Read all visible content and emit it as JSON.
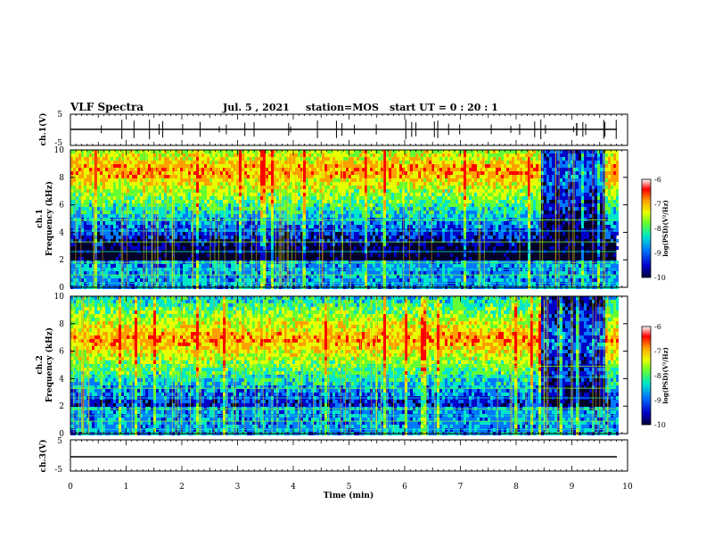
{
  "header": {
    "title": "VLF Spectra",
    "date": "Jul. 5 , 2021",
    "station": "station=MOS",
    "start": "start UT =  0 : 20 : 1"
  },
  "colors": {
    "spectral_scale": [
      "#00003c",
      "#0000c8",
      "#0078ff",
      "#00e6c8",
      "#64ff32",
      "#e6ff00",
      "#ffa000",
      "#ff0000",
      "#ffffff"
    ],
    "axis": "#000000"
  },
  "chart_data": [
    {
      "type": "line",
      "name": "ch1-waveform",
      "ylabel": "ch.1(V)",
      "ylim": [
        -5,
        5
      ],
      "ytick_labels": [
        "5",
        "-5"
      ],
      "xlim": [
        0,
        10
      ],
      "series": [
        {
          "x": [
            0,
            9.8
          ],
          "y": [
            0,
            0
          ]
        }
      ]
    },
    {
      "type": "heatmap",
      "name": "ch1-spectrogram",
      "ylabel": "ch.1 Frequency (kHz)",
      "ylabel_lines": [
        "ch.1",
        "Frequency (kHz)"
      ],
      "ylim": [
        0,
        10
      ],
      "ytick_labels": [
        "0",
        "2",
        "4",
        "6",
        "8",
        "10"
      ],
      "xlim": [
        0,
        10
      ],
      "data_end_min": 9.8,
      "band_center_khz": 8.6,
      "colorbar": {
        "label": "log(PSD)(V²/Hz)",
        "range": [
          -10,
          -6
        ],
        "tick_labels": [
          "-6",
          "-7",
          "-8",
          "-9",
          "-10"
        ]
      }
    },
    {
      "type": "heatmap",
      "name": "ch2-spectrogram",
      "ylabel": "ch.2 Frequency (kHz)",
      "ylabel_lines": [
        "ch.2",
        "Frequency (kHz)"
      ],
      "ylim": [
        0,
        10
      ],
      "ytick_labels": [
        "0",
        "2",
        "4",
        "6",
        "8",
        "10"
      ],
      "xlim": [
        0,
        10
      ],
      "data_end_min": 9.8,
      "band_center_khz": 7.0,
      "colorbar": {
        "label": "log(PSD)(V²/Hz)",
        "range": [
          -10,
          -6
        ],
        "tick_labels": [
          "-6",
          "-7",
          "-8",
          "-9",
          "-10"
        ]
      }
    },
    {
      "type": "line",
      "name": "ch3-waveform",
      "ylabel": "ch.3(V)",
      "ylim": [
        -5,
        5
      ],
      "ytick_labels": [
        "5",
        "-5"
      ],
      "xlim": [
        0,
        10
      ],
      "series": [
        {
          "x": [
            0,
            9.8
          ],
          "y": [
            0,
            0
          ]
        }
      ]
    }
  ],
  "xaxis": {
    "label": "Time (min)",
    "range": [
      0,
      10
    ],
    "tick_labels": [
      "0",
      "1",
      "2",
      "3",
      "4",
      "5",
      "6",
      "7",
      "8",
      "9",
      "10"
    ]
  }
}
